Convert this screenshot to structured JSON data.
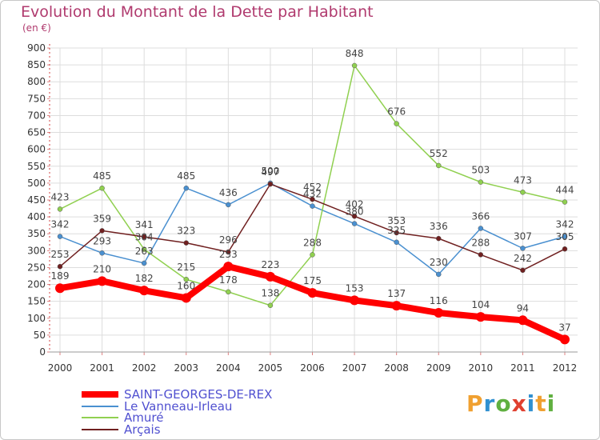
{
  "title": "Evolution du Montant de la Dette par Habitant",
  "subtitle": "(en €)",
  "logo": {
    "text": "Proxiti",
    "colors": [
      "#f0a030",
      "#3090d0",
      "#60b040",
      "#e04030",
      "#3090d0",
      "#f0a030",
      "#60b040"
    ]
  },
  "chart_data": {
    "type": "line",
    "x": [
      "2000",
      "2001",
      "2002",
      "2003",
      "2004",
      "2005",
      "2006",
      "2007",
      "2008",
      "2009",
      "2010",
      "2011",
      "2012"
    ],
    "ylim": [
      0,
      900
    ],
    "yticks": [
      0,
      50,
      100,
      150,
      200,
      250,
      300,
      350,
      400,
      450,
      500,
      550,
      600,
      650,
      700,
      750,
      800,
      850,
      900
    ],
    "grid": true,
    "legend_position": "bottom-left",
    "series": [
      {
        "name": "SAINT-GEORGES-DE-REX",
        "color": "#ff0000",
        "values": [
          189,
          210,
          182,
          160,
          253,
          223,
          175,
          153,
          137,
          116,
          104,
          94,
          37
        ],
        "labels": [
          "189",
          "210",
          "182",
          "160",
          "253",
          "223",
          "175",
          "153",
          "137",
          "116",
          "104",
          "94",
          "37"
        ]
      },
      {
        "name": "Le Vanneau-Irleau",
        "color": "#4a90d0",
        "values": [
          342,
          293,
          263,
          485,
          436,
          500,
          432,
          380,
          325,
          230,
          366,
          307,
          342
        ],
        "labels": [
          "342",
          "293",
          "263",
          "485",
          "436",
          "500",
          "432",
          "380",
          "325",
          "230",
          "366",
          "307",
          "342"
        ]
      },
      {
        "name": "Amuré",
        "color": "#90d050",
        "values": [
          423,
          485,
          304,
          215,
          178,
          138,
          288,
          848,
          676,
          552,
          503,
          473,
          444
        ],
        "labels": [
          "423",
          "485",
          "304",
          "215",
          "178",
          "138",
          "288",
          "848",
          "676",
          "552",
          "503",
          "473",
          "444"
        ]
      },
      {
        "name": "Arçais",
        "color": "#702020",
        "values": [
          253,
          359,
          341,
          323,
          296,
          497,
          452,
          402,
          353,
          336,
          288,
          242,
          305
        ],
        "labels": [
          "253",
          "359",
          "341",
          "323",
          "296",
          "497",
          "452",
          "402",
          "353",
          "336",
          "288",
          "242",
          "305"
        ]
      }
    ]
  }
}
